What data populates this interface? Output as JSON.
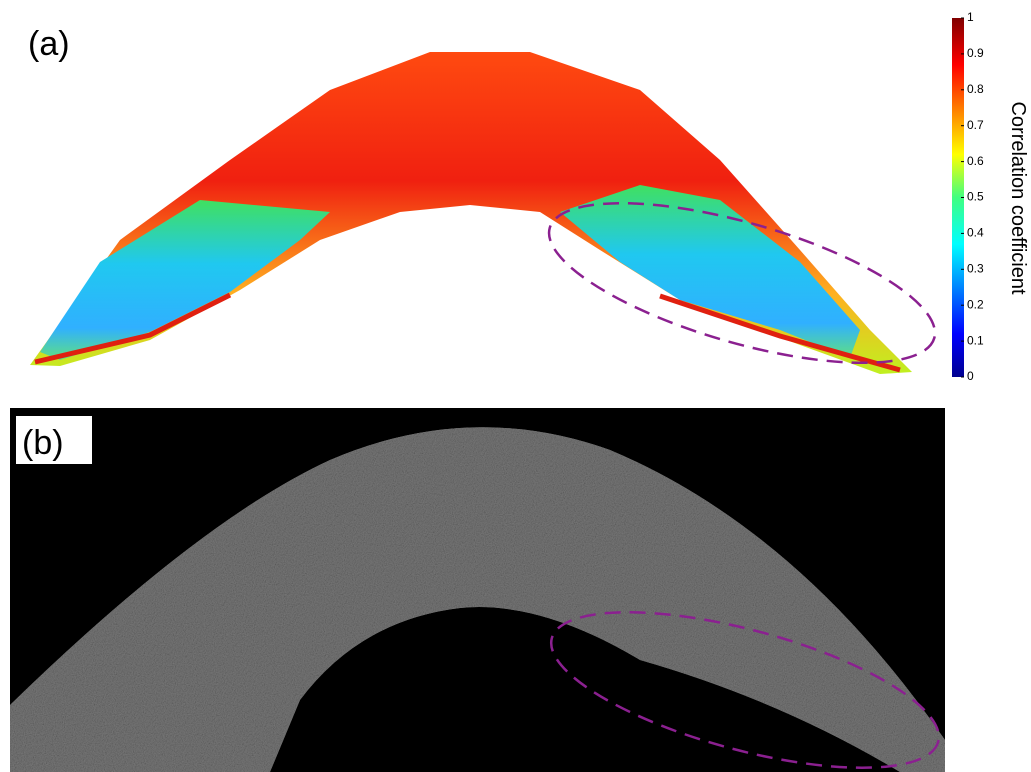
{
  "panels": [
    {
      "label": "(a)"
    },
    {
      "label": "(b)"
    }
  ],
  "colorbar": {
    "label": "Correlation coefficient",
    "lim": [
      0,
      1
    ],
    "ticks": [
      0,
      0.1,
      0.2,
      0.3,
      0.4,
      0.5,
      0.6,
      0.7,
      0.8,
      0.9,
      1
    ]
  }
}
